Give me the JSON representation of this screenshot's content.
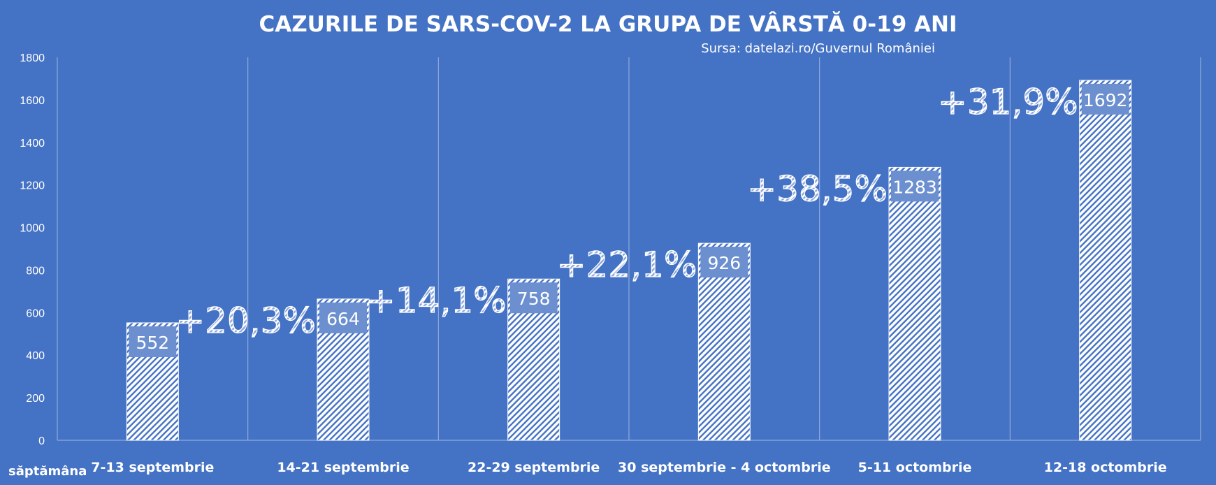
{
  "chart_data": {
    "type": "bar",
    "title": "CAZURILE DE SARS-COV-2 LA GRUPA DE VÂRSTĂ 0-19 ANI",
    "subtitle": "Sursa: datelazi.ro/Guvernul României",
    "xlabel": "săptămâna",
    "ylabel": "",
    "categories": [
      "7-13 septembrie",
      "14-21 septembrie",
      "22-29 septembrie",
      "30 septembrie - 4 octombrie",
      "5-11 octombrie",
      "12-18 octombrie"
    ],
    "values": [
      552,
      664,
      758,
      926,
      1283,
      1692
    ],
    "data_labels": [
      "552",
      "664",
      "758",
      "926",
      "1283",
      "1692"
    ],
    "annotations": [
      "+20,3%",
      "+14,1%",
      "+22,1%",
      "+38,5%",
      "+31,9%"
    ],
    "ylim": [
      0,
      1800
    ],
    "yticks": [
      0,
      200,
      400,
      600,
      800,
      1000,
      1200,
      1400,
      1600,
      1800
    ],
    "grid": "vertical",
    "colors": {
      "background": "#4472c4",
      "bar_pattern": "#ffffff",
      "label_box": "#6c8fd0"
    }
  }
}
